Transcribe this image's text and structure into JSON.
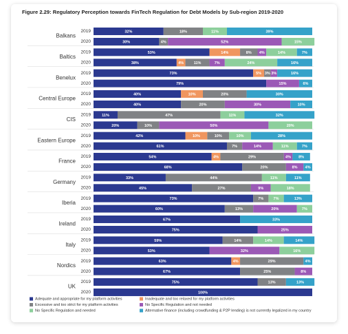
{
  "chart_data": {
    "type": "stacked-bar",
    "title": "Figure 2.29: Regulatory Perception towards FinTech Regulation for Debt Models by Sub-region 2019-2020",
    "categories": [
      "Balkans",
      "Baltics",
      "Benelux",
      "Central Europe",
      "CIS",
      "Eastern Europe",
      "France",
      "Germany",
      "Iberia",
      "Ireland",
      "Italy",
      "Nordics",
      "UK"
    ],
    "years": [
      "2019",
      "2020"
    ],
    "xlim": [
      0,
      100
    ],
    "series": [
      {
        "name": "Adequate and appropriate for my platform activities",
        "color": "#2b3990",
        "values": [
          [
            32,
            30
          ],
          [
            53,
            38
          ],
          [
            73,
            79
          ],
          [
            40,
            40
          ],
          [
            11,
            20
          ],
          [
            42,
            61
          ],
          [
            54,
            68
          ],
          [
            33,
            45
          ],
          [
            73,
            60
          ],
          [
            67,
            75
          ],
          [
            59,
            53
          ],
          [
            63,
            67
          ],
          [
            75,
            100
          ]
        ],
        "value_labels": [
          [
            "32%",
            "30%"
          ],
          [
            "53%",
            "38%"
          ],
          [
            "73%",
            "79%"
          ],
          [
            "40%",
            "40%"
          ],
          [
            "11%",
            "20%"
          ],
          [
            "42%",
            "61%"
          ],
          [
            "54%",
            "68%"
          ],
          [
            "33%",
            "45%"
          ],
          [
            "73%",
            "60%"
          ],
          [
            "67%",
            "75%"
          ],
          [
            "59%",
            "53%"
          ],
          [
            "63%",
            "67%"
          ],
          [
            "75%",
            "100%"
          ]
        ]
      },
      {
        "name": "Inadequate and too relaxed for my platform activities",
        "color": "#f0965f",
        "values": [
          [
            null,
            null
          ],
          [
            14,
            4
          ],
          [
            5,
            null
          ],
          [
            10,
            null
          ],
          [
            null,
            null
          ],
          [
            10,
            null
          ],
          [
            4,
            null
          ],
          [
            null,
            null
          ],
          [
            null,
            null
          ],
          [
            null,
            null
          ],
          [
            null,
            null
          ],
          [
            4,
            null
          ],
          [
            null,
            null
          ]
        ],
        "value_labels": [
          [
            null,
            null
          ],
          [
            "14%",
            "4%"
          ],
          [
            "5%",
            null
          ],
          [
            "10%",
            null
          ],
          [
            null,
            null
          ],
          [
            "10%",
            null
          ],
          [
            "4%",
            null
          ],
          [
            null,
            null
          ],
          [
            null,
            null
          ],
          [
            null,
            null
          ],
          [
            null,
            null
          ],
          [
            "4%",
            null
          ],
          [
            null,
            null
          ]
        ]
      },
      {
        "name": "Excessive and too strict for my platform activities",
        "color": "#808285",
        "values": [
          [
            18,
            4
          ],
          [
            8,
            11
          ],
          [
            3,
            null
          ],
          [
            20,
            20
          ],
          [
            47,
            10
          ],
          [
            10,
            7
          ],
          [
            29,
            20
          ],
          [
            44,
            27
          ],
          [
            7,
            13
          ],
          [
            null,
            null
          ],
          [
            14,
            null
          ],
          [
            29,
            25
          ],
          [
            13,
            null
          ]
        ],
        "value_labels": [
          [
            "18%",
            "4%"
          ],
          [
            "8%",
            "11%"
          ],
          [
            "3%",
            null
          ],
          [
            "20%",
            "20%"
          ],
          [
            "47%",
            "10%"
          ],
          [
            "10%",
            "7%"
          ],
          [
            "29%",
            "20%"
          ],
          [
            "44%",
            "27%"
          ],
          [
            "7%",
            "13%"
          ],
          [
            null,
            null
          ],
          [
            "14%",
            null
          ],
          [
            "29%",
            "25%"
          ],
          [
            "13%",
            null
          ]
        ]
      },
      {
        "name": "No Specific Regulation and not needed",
        "color": "#9b59b6",
        "values": [
          [
            null,
            52
          ],
          [
            4,
            7
          ],
          [
            3,
            15
          ],
          [
            null,
            30
          ],
          [
            null,
            50
          ],
          [
            null,
            14
          ],
          [
            4,
            8
          ],
          [
            null,
            9
          ],
          [
            null,
            20
          ],
          [
            null,
            25
          ],
          [
            null,
            32
          ],
          [
            null,
            8
          ],
          [
            null,
            null
          ]
        ],
        "value_labels": [
          [
            null,
            "52%"
          ],
          [
            "4%",
            "7%"
          ],
          [
            "3%",
            "15%"
          ],
          [
            null,
            "30%"
          ],
          [
            null,
            "50%"
          ],
          [
            null,
            "14%"
          ],
          [
            "4%",
            "8%"
          ],
          [
            null,
            "9%"
          ],
          [
            null,
            "20%"
          ],
          [
            null,
            "25%"
          ],
          [
            null,
            "32%"
          ],
          [
            null,
            "8%"
          ],
          [
            null,
            null
          ]
        ]
      },
      {
        "name": "No Specific Regulation and needed",
        "color": "#8dcf9c",
        "values": [
          [
            11,
            15
          ],
          [
            14,
            24
          ],
          [
            null,
            null
          ],
          [
            null,
            null
          ],
          [
            11,
            20
          ],
          [
            10,
            11
          ],
          [
            null,
            null
          ],
          [
            11,
            18
          ],
          [
            7,
            7
          ],
          [
            null,
            null
          ],
          [
            14,
            16
          ],
          [
            null,
            null
          ],
          [
            null,
            null
          ]
        ],
        "value_labels": [
          [
            "11%",
            "15%"
          ],
          [
            "14%",
            "24%"
          ],
          [
            null,
            null
          ],
          [
            null,
            null
          ],
          [
            "11%",
            "20%"
          ],
          [
            "10%",
            "11%"
          ],
          [
            null,
            null
          ],
          [
            "11%",
            "18%"
          ],
          [
            "7%",
            "7%"
          ],
          [
            null,
            null
          ],
          [
            "14%",
            "16%"
          ],
          [
            null,
            null
          ],
          [
            null,
            null
          ]
        ]
      },
      {
        "name": "Alternative finance (including crowdfunding & P2P lending) is not currently legalized in my country",
        "color": "#35a2c9",
        "values": [
          [
            39,
            null
          ],
          [
            7,
            16
          ],
          [
            16,
            6
          ],
          [
            30,
            10
          ],
          [
            32,
            null
          ],
          [
            28,
            7
          ],
          [
            8,
            4
          ],
          [
            11,
            null
          ],
          [
            13,
            null
          ],
          [
            33,
            null
          ],
          [
            14,
            null
          ],
          [
            4,
            null
          ],
          [
            13,
            null
          ]
        ],
        "value_labels": [
          [
            "39%",
            null
          ],
          [
            "7%",
            "16%"
          ],
          [
            "16%",
            "6%"
          ],
          [
            "30%",
            "10%"
          ],
          [
            "32%",
            null
          ],
          [
            "28%",
            "7%"
          ],
          [
            "8%",
            "4%"
          ],
          [
            "11%",
            null
          ],
          [
            "13%",
            null
          ],
          [
            "33%",
            null
          ],
          [
            "14%",
            null
          ],
          [
            "4%",
            null
          ],
          [
            "13%",
            null
          ]
        ]
      }
    ]
  }
}
